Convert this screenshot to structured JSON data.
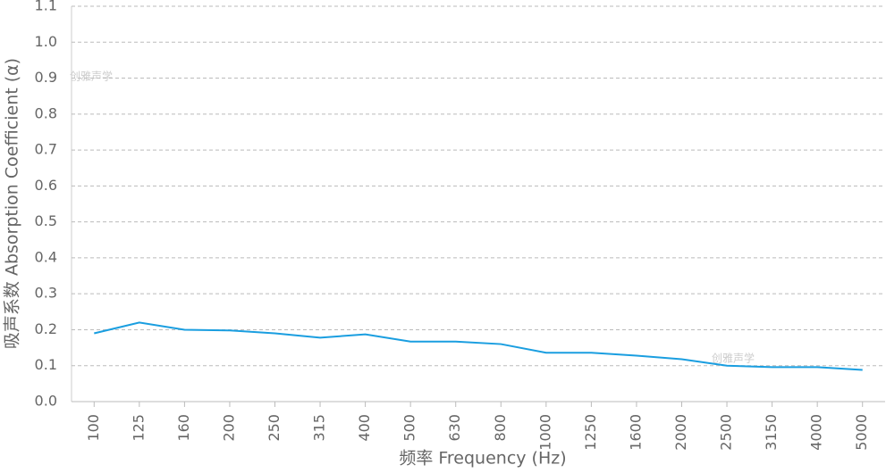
{
  "chart_data": {
    "type": "line",
    "x_label": "频率 Frequency (Hz)",
    "y_label": "吸声系数 Absorption Coefficient (α)",
    "watermark": "创雅声学",
    "categories": [
      "100",
      "125",
      "160",
      "200",
      "250",
      "315",
      "400",
      "500",
      "630",
      "800",
      "1000",
      "1250",
      "1600",
      "2000",
      "2500",
      "3150",
      "4000",
      "5000"
    ],
    "series": [
      {
        "name": "Absorption Coefficient",
        "color": "#1a9ee0",
        "values": [
          0.19,
          0.22,
          0.2,
          0.198,
          0.19,
          0.178,
          0.187,
          0.167,
          0.167,
          0.16,
          0.136,
          0.136,
          0.128,
          0.118,
          0.1,
          0.096,
          0.096,
          0.088
        ]
      }
    ],
    "ylim": [
      0,
      1.1
    ],
    "yticks": [
      {
        "value": 0,
        "label": "0.0"
      },
      0.1,
      0.2,
      0.3,
      0.4,
      0.5,
      0.6,
      0.7,
      0.8,
      0.9,
      {
        "value": 1,
        "label": "1.0"
      },
      1.1
    ],
    "grid": true
  }
}
